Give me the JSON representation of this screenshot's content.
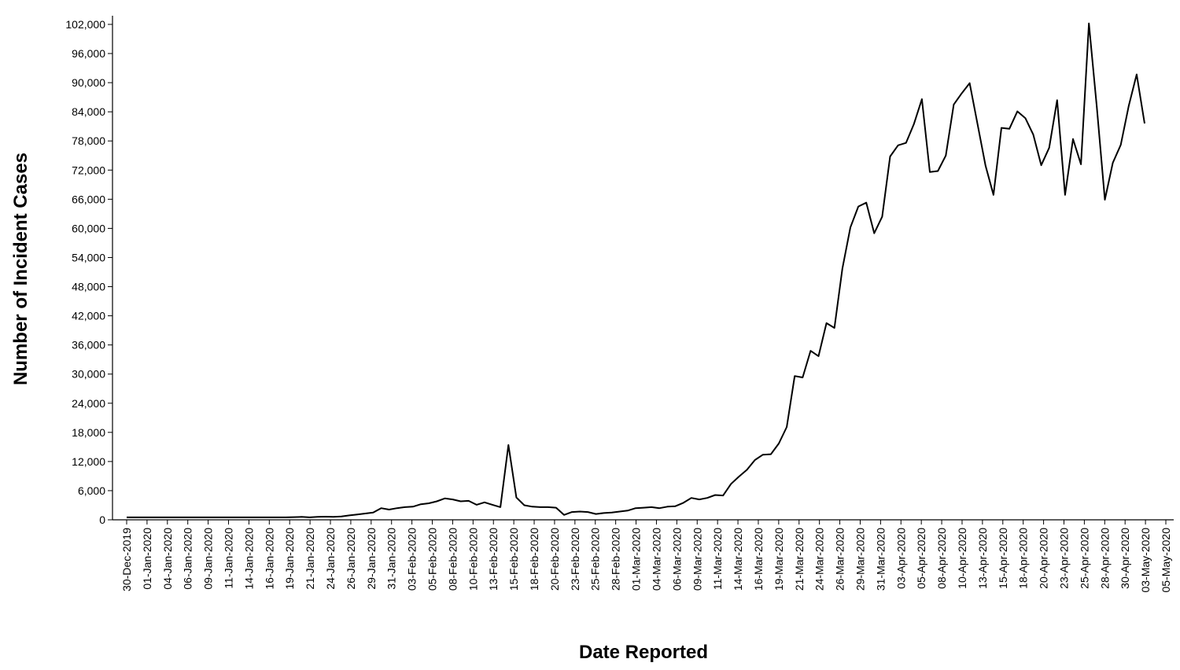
{
  "chart_data": {
    "type": "line",
    "title": "",
    "xlabel": "Date Reported",
    "ylabel": "Number of Incident Cases",
    "ylim": [
      0,
      102000
    ],
    "grid": false,
    "legend": "none",
    "line_color": "#000000",
    "y_ticks": [
      "0",
      "6,000",
      "12,000",
      "18,000",
      "24,000",
      "30,000",
      "36,000",
      "42,000",
      "48,000",
      "54,000",
      "60,000",
      "66,000",
      "72,000",
      "78,000",
      "84,000",
      "90,000",
      "96,000",
      "102,000"
    ],
    "y_tick_values": [
      0,
      6000,
      12000,
      18000,
      24000,
      30000,
      36000,
      42000,
      48000,
      54000,
      60000,
      66000,
      72000,
      78000,
      84000,
      90000,
      96000,
      102000
    ],
    "x_ticks": [
      "30-Dec-2019",
      "01-Jan-2020",
      "04-Jan-2020",
      "06-Jan-2020",
      "09-Jan-2020",
      "11-Jan-2020",
      "14-Jan-2020",
      "16-Jan-2020",
      "19-Jan-2020",
      "21-Jan-2020",
      "24-Jan-2020",
      "26-Jan-2020",
      "29-Jan-2020",
      "31-Jan-2020",
      "03-Feb-2020",
      "05-Feb-2020",
      "08-Feb-2020",
      "10-Feb-2020",
      "13-Feb-2020",
      "15-Feb-2020",
      "18-Feb-2020",
      "20-Feb-2020",
      "23-Feb-2020",
      "25-Feb-2020",
      "28-Feb-2020",
      "01-Mar-2020",
      "04-Mar-2020",
      "06-Mar-2020",
      "09-Mar-2020",
      "11-Mar-2020",
      "14-Mar-2020",
      "16-Mar-2020",
      "19-Mar-2020",
      "21-Mar-2020",
      "24-Mar-2020",
      "26-Mar-2020",
      "29-Mar-2020",
      "31-Mar-2020",
      "03-Apr-2020",
      "05-Apr-2020",
      "08-Apr-2020",
      "10-Apr-2020",
      "13-Apr-2020",
      "15-Apr-2020",
      "18-Apr-2020",
      "20-Apr-2020",
      "23-Apr-2020",
      "25-Apr-2020",
      "28-Apr-2020",
      "30-Apr-2020",
      "03-May-2020",
      "05-May-2020"
    ],
    "series": [
      {
        "values": [
          500,
          500,
          500,
          500,
          500,
          500,
          500,
          500,
          500,
          500,
          500,
          500,
          500,
          500,
          500,
          500,
          500,
          500,
          500,
          500,
          500,
          550,
          600,
          500,
          600,
          650,
          600,
          700,
          900,
          1100,
          1300,
          1500,
          2400,
          2100,
          2400,
          2600,
          2700,
          3200,
          3400,
          3800,
          4400,
          4200,
          3800,
          3900,
          3100,
          3600,
          3100,
          2600,
          15400,
          4600,
          3000,
          2700,
          2600,
          2600,
          2500,
          1000,
          1600,
          1700,
          1600,
          1200,
          1400,
          1500,
          1700,
          1900,
          2400,
          2500,
          2600,
          2400,
          2700,
          2800,
          3500,
          4500,
          4200,
          4500,
          5100,
          5000,
          7400,
          8900,
          10300,
          12300,
          13400,
          13500,
          15700,
          19100,
          29600,
          29300,
          34800,
          33700,
          40500,
          39500,
          51700,
          60200,
          64500,
          65300,
          59000,
          62400,
          74800,
          77100,
          77600,
          81500,
          86600,
          71600,
          71800,
          75000,
          85500,
          87800,
          89900,
          81400,
          72900,
          66900,
          80700,
          80500,
          84100,
          82700,
          79300,
          73000,
          76600,
          86400,
          66900,
          78400,
          73200,
          102200,
          84900,
          65900,
          73500,
          77200,
          85200,
          91700,
          81600
        ]
      }
    ]
  }
}
